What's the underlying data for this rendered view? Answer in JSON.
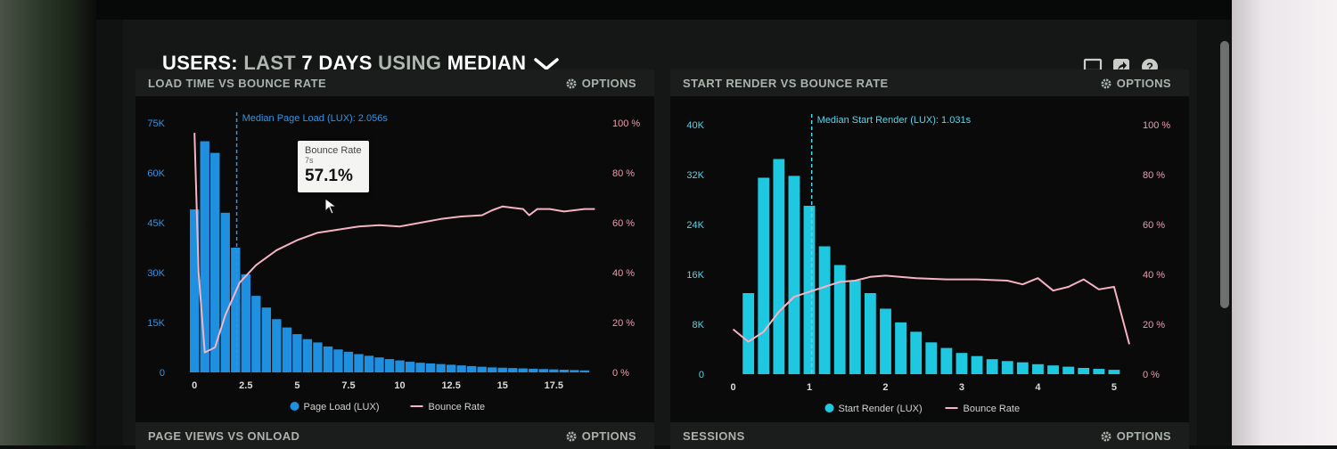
{
  "header": {
    "title_prefix": "USERS:",
    "title_range": "LAST",
    "title_days": "7 DAYS",
    "title_using": "USING",
    "title_stat": "MEDIAN",
    "icons": [
      "monitor-icon",
      "share-icon",
      "help-icon"
    ]
  },
  "colors": {
    "blue_bar": "#1f8fe0",
    "cyan_bar": "#1ec8e0",
    "pink_line": "#f6b3c3",
    "panel_bg": "#0a0a0a"
  },
  "panels": [
    {
      "title": "LOAD TIME VS BOUNCE RATE",
      "options": "OPTIONS"
    },
    {
      "title": "START RENDER VS BOUNCE RATE",
      "options": "OPTIONS"
    },
    {
      "title": "PAGE VIEWS VS ONLOAD",
      "options": "OPTIONS"
    },
    {
      "title": "SESSIONS",
      "options": "OPTIONS"
    }
  ],
  "tooltip": {
    "label": "Bounce Rate",
    "sub": "7s",
    "value": "57.1%"
  },
  "chart_data": [
    {
      "type": "bar",
      "title": "LOAD TIME VS BOUNCE RATE",
      "bar_color": "#1f8fe0",
      "line_color": "#f6b3c3",
      "x": [
        0,
        0.5,
        1,
        1.5,
        2,
        2.5,
        3,
        3.5,
        4,
        4.5,
        5,
        5.5,
        6,
        6.5,
        7,
        7.5,
        8,
        8.5,
        9,
        9.5,
        10,
        10.5,
        11,
        11.5,
        12,
        12.5,
        13,
        13.5,
        14,
        14.5,
        15,
        15.5,
        16,
        16.5,
        17,
        17.5,
        18,
        18.5,
        19
      ],
      "xlim": [
        -0.4,
        19.7
      ],
      "xticks": [
        0,
        2.5,
        5,
        7.5,
        10,
        12.5,
        15,
        17.5
      ],
      "xtick_labels": [
        "0",
        "2.5",
        "5",
        "7.5",
        "10",
        "12.5",
        "15",
        "17.5"
      ],
      "bar_width": 0.45,
      "series": [
        {
          "name": "Page Load (LUX)",
          "axis": "left",
          "values": [
            49000,
            69500,
            66000,
            48000,
            37500,
            29500,
            23000,
            19500,
            16000,
            13500,
            11500,
            10000,
            9000,
            7800,
            6900,
            6200,
            5500,
            5000,
            4500,
            4000,
            3600,
            3200,
            2900,
            2700,
            2500,
            2300,
            2100,
            1900,
            1700,
            1500,
            1400,
            1300,
            1200,
            1100,
            1000,
            900,
            800,
            700,
            600
          ]
        },
        {
          "name": "Bounce Rate",
          "axis": "right",
          "points": [
            [
              0,
              96
            ],
            [
              0.2,
              40
            ],
            [
              0.5,
              8
            ],
            [
              1,
              10
            ],
            [
              1.5,
              23
            ],
            [
              2.2,
              36
            ],
            [
              3,
              43
            ],
            [
              4,
              49
            ],
            [
              5,
              53
            ],
            [
              6,
              56
            ],
            [
              6.9,
              57.1
            ],
            [
              8,
              58.5
            ],
            [
              9,
              59
            ],
            [
              10,
              58.5
            ],
            [
              11,
              60
            ],
            [
              12,
              61.5
            ],
            [
              13,
              62.5
            ],
            [
              14,
              63
            ],
            [
              14.5,
              65
            ],
            [
              15,
              66.5
            ],
            [
              15.5,
              66
            ],
            [
              16,
              65.5
            ],
            [
              16.3,
              63
            ],
            [
              16.7,
              65.5
            ],
            [
              17.3,
              65.5
            ],
            [
              18,
              64.5
            ],
            [
              19,
              65.5
            ],
            [
              19.5,
              65.5
            ]
          ]
        }
      ],
      "left_ylim": [
        0,
        75000
      ],
      "left_ticks": [
        0,
        15000,
        30000,
        45000,
        60000,
        75000
      ],
      "left_tick_labels": [
        "0",
        "15K",
        "30K",
        "45K",
        "60K",
        "75K"
      ],
      "right_ylim": [
        0,
        100
      ],
      "right_ticks": [
        0,
        20,
        40,
        60,
        80,
        100
      ],
      "right_tick_labels": [
        "0 %",
        "20 %",
        "40 %",
        "60 %",
        "80 %",
        "100 %"
      ],
      "median_x": 2.056,
      "median_label": "Median Page Load (LUX): 2.056s",
      "legend": [
        "Page Load (LUX)",
        "Bounce Rate"
      ]
    },
    {
      "type": "bar",
      "title": "START RENDER VS BOUNCE RATE",
      "bar_color": "#1ec8e0",
      "line_color": "#f6b3c3",
      "x": [
        0.2,
        0.4,
        0.6,
        0.8,
        1,
        1.2,
        1.4,
        1.6,
        1.8,
        2,
        2.2,
        2.4,
        2.6,
        2.8,
        3,
        3.2,
        3.4,
        3.6,
        3.8,
        4,
        4.2,
        4.4,
        4.6,
        4.8,
        5
      ],
      "xlim": [
        -0.1,
        5.2
      ],
      "xticks": [
        0,
        1,
        2,
        3,
        4,
        5
      ],
      "xtick_labels": [
        "0",
        "1",
        "2",
        "3",
        "4",
        "5"
      ],
      "bar_width": 0.15,
      "series": [
        {
          "name": "Start Render (LUX)",
          "axis": "left",
          "values": [
            13000,
            31500,
            34500,
            31800,
            27000,
            20500,
            17500,
            15000,
            13000,
            10500,
            8300,
            6800,
            5100,
            4200,
            3400,
            2900,
            2400,
            2100,
            1900,
            1600,
            1400,
            1200,
            1000,
            850,
            700
          ]
        },
        {
          "name": "Bounce Rate",
          "axis": "right",
          "points": [
            [
              0,
              18
            ],
            [
              0.2,
              13
            ],
            [
              0.4,
              17
            ],
            [
              0.6,
              25
            ],
            [
              0.8,
              31
            ],
            [
              1,
              33
            ],
            [
              1.2,
              35
            ],
            [
              1.4,
              37
            ],
            [
              1.6,
              37.5
            ],
            [
              1.8,
              39
            ],
            [
              2,
              39.5
            ],
            [
              2.4,
              38.5
            ],
            [
              2.8,
              38
            ],
            [
              3.2,
              38
            ],
            [
              3.6,
              37.5
            ],
            [
              3.8,
              36
            ],
            [
              4,
              38.5
            ],
            [
              4.2,
              33.5
            ],
            [
              4.4,
              35
            ],
            [
              4.6,
              38
            ],
            [
              4.8,
              34
            ],
            [
              5,
              35
            ],
            [
              5.2,
              12
            ]
          ]
        }
      ],
      "left_ylim": [
        0,
        40000
      ],
      "left_ticks": [
        0,
        8000,
        16000,
        24000,
        32000,
        40000
      ],
      "left_tick_labels": [
        "0",
        "8K",
        "16K",
        "24K",
        "32K",
        "40K"
      ],
      "right_ylim": [
        0,
        100
      ],
      "right_ticks": [
        0,
        20,
        40,
        60,
        80,
        100
      ],
      "right_tick_labels": [
        "0 %",
        "20 %",
        "40 %",
        "60 %",
        "80 %",
        "100 %"
      ],
      "median_x": 1.031,
      "median_label": "Median Start Render (LUX): 1.031s",
      "legend": [
        "Start Render (LUX)",
        "Bounce Rate"
      ]
    }
  ]
}
